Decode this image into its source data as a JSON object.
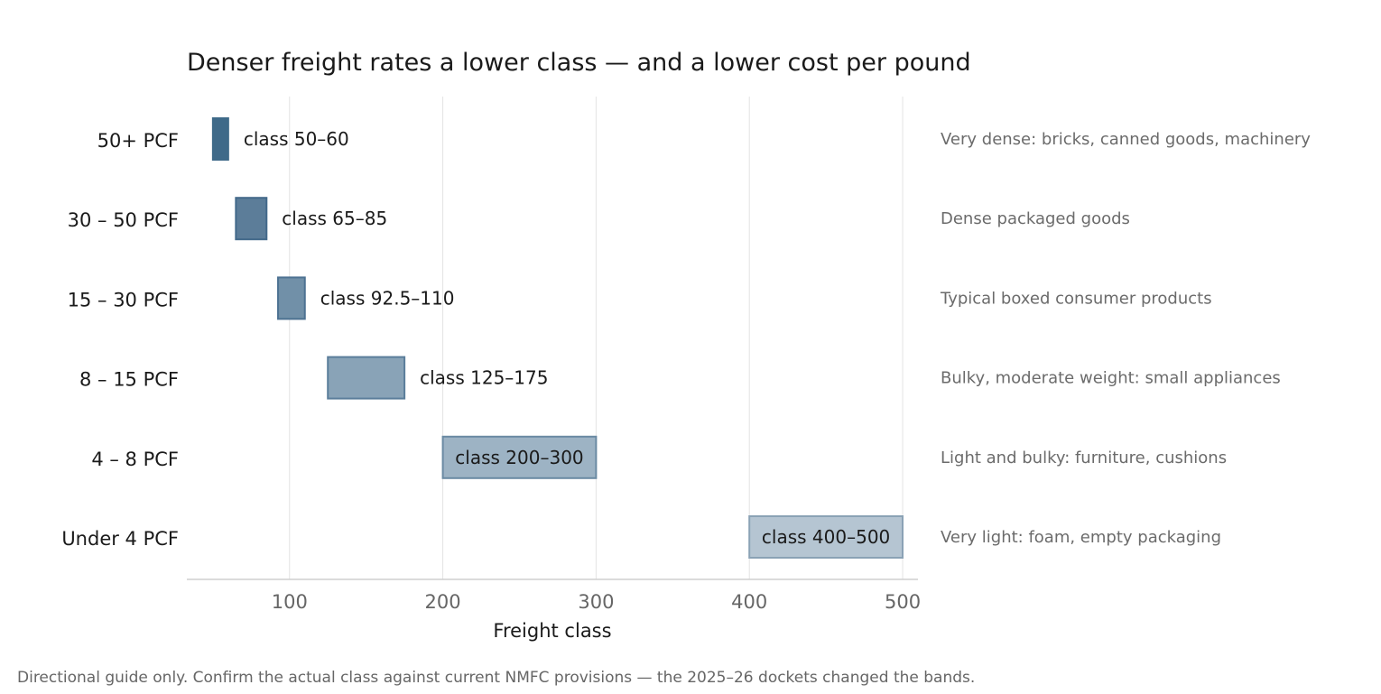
{
  "chart_data": {
    "type": "bar",
    "title": "Denser freight rates a lower class — and a lower cost per pound",
    "xlabel": "Freight class",
    "ylabel": "",
    "xlim": [
      33,
      510
    ],
    "xticks": [
      100,
      200,
      300,
      400,
      500
    ],
    "grid": true,
    "orientation": "horizontal-range",
    "categories": [
      "50+ PCF",
      "30 – 50 PCF",
      "15 – 30 PCF",
      "8 – 15 PCF",
      "4 – 8 PCF",
      "Under 4 PCF"
    ],
    "ranges": [
      [
        50,
        60
      ],
      [
        65,
        85
      ],
      [
        92.5,
        110
      ],
      [
        125,
        175
      ],
      [
        200,
        300
      ],
      [
        400,
        500
      ]
    ],
    "bar_labels": [
      "class 50–60",
      "class 65–85",
      "class 92.5–110",
      "class 125–175",
      "class 200–300",
      "class 400–500"
    ],
    "descriptions": [
      "Very dense: bricks, canned goods, machinery",
      "Dense packaged goods",
      "Typical boxed consumer products",
      "Bulky, moderate weight: small appliances",
      "Light and bulky: furniture, cushions",
      "Very light: foam, empty packaging"
    ],
    "colors": {
      "fills": [
        "#3f6a89",
        "#5c7d99",
        "#7190a8",
        "#89a3b7",
        "#9db3c4",
        "#b5c5d2"
      ],
      "strokes": [
        "#3f6a89",
        "#43698a",
        "#4d7292",
        "#5a7d9a",
        "#6a8aa3",
        "#8aa2b5"
      ],
      "grid": "#e3e3e3",
      "axis": "#cfcfcf",
      "tick_text": "#666666",
      "text": "#1a1a1a",
      "description_text": "#6b6b6b",
      "footnote_text": "#666666"
    }
  },
  "footnote": "Directional guide only. Confirm the actual class against current NMFC provisions — the 2025–26 dockets changed the bands."
}
